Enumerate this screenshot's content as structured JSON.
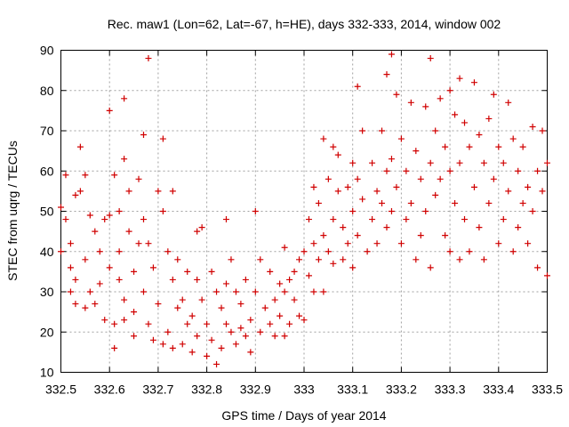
{
  "chart_data": {
    "type": "scatter",
    "title": "Rec. maw1 (Lon=62, Lat=-67, h=HE), days 332-333, 2014, window 002",
    "xlabel": "GPS time / Days of year 2014",
    "ylabel": "STEC from uqrg / TECUs",
    "xlim": [
      332.5,
      333.5
    ],
    "ylim": [
      10,
      90
    ],
    "x_ticks": [
      "332.5",
      "332.6",
      "332.7",
      "332.8",
      "332.9",
      "333",
      "333.1",
      "333.2",
      "333.3",
      "333.4",
      "333.5"
    ],
    "y_ticks": [
      "10",
      "20",
      "30",
      "40",
      "50",
      "60",
      "70",
      "80",
      "90"
    ],
    "grid": true,
    "marker": "+",
    "marker_color": "#d00000",
    "series": [
      {
        "points": [
          [
            332.5,
            51
          ],
          [
            332.5,
            40
          ],
          [
            332.51,
            59
          ],
          [
            332.51,
            48
          ],
          [
            332.52,
            42
          ],
          [
            332.52,
            36
          ],
          [
            332.52,
            30
          ],
          [
            332.53,
            54
          ],
          [
            332.53,
            33
          ],
          [
            332.53,
            27
          ],
          [
            332.54,
            66
          ],
          [
            332.54,
            55
          ],
          [
            332.55,
            59
          ],
          [
            332.55,
            38
          ],
          [
            332.55,
            26
          ],
          [
            332.56,
            49
          ],
          [
            332.56,
            30
          ],
          [
            332.57,
            45
          ],
          [
            332.57,
            27
          ],
          [
            332.58,
            40
          ],
          [
            332.58,
            32
          ],
          [
            332.59,
            48
          ],
          [
            332.59,
            23
          ],
          [
            332.6,
            75
          ],
          [
            332.6,
            49
          ],
          [
            332.6,
            36
          ],
          [
            332.61,
            22
          ],
          [
            332.61,
            16
          ],
          [
            332.61,
            59
          ],
          [
            332.62,
            50
          ],
          [
            332.62,
            40
          ],
          [
            332.62,
            33
          ],
          [
            332.63,
            63
          ],
          [
            332.63,
            78
          ],
          [
            332.63,
            28
          ],
          [
            332.63,
            23
          ],
          [
            332.64,
            55
          ],
          [
            332.64,
            45
          ],
          [
            332.65,
            35
          ],
          [
            332.65,
            25
          ],
          [
            332.65,
            19
          ],
          [
            332.66,
            58
          ],
          [
            332.66,
            42
          ],
          [
            332.67,
            69
          ],
          [
            332.67,
            48
          ],
          [
            332.67,
            30
          ],
          [
            332.68,
            88
          ],
          [
            332.68,
            42
          ],
          [
            332.68,
            22
          ],
          [
            332.69,
            36
          ],
          [
            332.69,
            18
          ],
          [
            332.7,
            55
          ],
          [
            332.7,
            27
          ],
          [
            332.71,
            68
          ],
          [
            332.71,
            50
          ],
          [
            332.71,
            17
          ],
          [
            332.72,
            40
          ],
          [
            332.72,
            20
          ],
          [
            332.73,
            55
          ],
          [
            332.73,
            33
          ],
          [
            332.73,
            16
          ],
          [
            332.74,
            38
          ],
          [
            332.74,
            26
          ],
          [
            332.75,
            28
          ],
          [
            332.75,
            17
          ],
          [
            332.76,
            35
          ],
          [
            332.76,
            22
          ],
          [
            332.77,
            24
          ],
          [
            332.77,
            15
          ],
          [
            332.78,
            45
          ],
          [
            332.78,
            33
          ],
          [
            332.78,
            19
          ],
          [
            332.79,
            46
          ],
          [
            332.79,
            28
          ],
          [
            332.8,
            22
          ],
          [
            332.8,
            14
          ],
          [
            332.81,
            35
          ],
          [
            332.81,
            18
          ],
          [
            332.82,
            30
          ],
          [
            332.82,
            12
          ],
          [
            332.83,
            26
          ],
          [
            332.83,
            16
          ],
          [
            332.84,
            48
          ],
          [
            332.84,
            32
          ],
          [
            332.84,
            22
          ],
          [
            332.85,
            38
          ],
          [
            332.85,
            20
          ],
          [
            332.86,
            30
          ],
          [
            332.86,
            17
          ],
          [
            332.87,
            27
          ],
          [
            332.87,
            21
          ],
          [
            332.88,
            33
          ],
          [
            332.88,
            19
          ],
          [
            332.89,
            23
          ],
          [
            332.89,
            15
          ],
          [
            332.9,
            50
          ],
          [
            332.9,
            30
          ],
          [
            332.91,
            38
          ],
          [
            332.91,
            20
          ],
          [
            332.92,
            26
          ],
          [
            332.93,
            35
          ],
          [
            332.93,
            22
          ],
          [
            332.94,
            28
          ],
          [
            332.94,
            19
          ],
          [
            332.95,
            32
          ],
          [
            332.95,
            24
          ],
          [
            332.96,
            41
          ],
          [
            332.96,
            30
          ],
          [
            332.96,
            19
          ],
          [
            332.97,
            33
          ],
          [
            332.97,
            22
          ],
          [
            332.98,
            35
          ],
          [
            332.98,
            28
          ],
          [
            332.99,
            38
          ],
          [
            332.99,
            24
          ],
          [
            333.0,
            40
          ],
          [
            333.0,
            23
          ],
          [
            333.01,
            48
          ],
          [
            333.01,
            34
          ],
          [
            333.02,
            56
          ],
          [
            333.02,
            42
          ],
          [
            333.02,
            30
          ],
          [
            333.03,
            52
          ],
          [
            333.03,
            38
          ],
          [
            333.04,
            68
          ],
          [
            333.04,
            44
          ],
          [
            333.04,
            30
          ],
          [
            333.05,
            58
          ],
          [
            333.05,
            40
          ],
          [
            333.06,
            66
          ],
          [
            333.06,
            48
          ],
          [
            333.06,
            37
          ],
          [
            333.07,
            64
          ],
          [
            333.07,
            55
          ],
          [
            333.08,
            46
          ],
          [
            333.08,
            38
          ],
          [
            333.09,
            56
          ],
          [
            333.09,
            42
          ],
          [
            333.1,
            62
          ],
          [
            333.1,
            50
          ],
          [
            333.1,
            36
          ],
          [
            333.11,
            81
          ],
          [
            333.11,
            58
          ],
          [
            333.11,
            44
          ],
          [
            333.12,
            70
          ],
          [
            333.12,
            53
          ],
          [
            333.13,
            40
          ],
          [
            333.14,
            62
          ],
          [
            333.14,
            48
          ],
          [
            333.15,
            55
          ],
          [
            333.15,
            42
          ],
          [
            333.16,
            70
          ],
          [
            333.16,
            52
          ],
          [
            333.17,
            84
          ],
          [
            333.17,
            60
          ],
          [
            333.17,
            46
          ],
          [
            333.18,
            89
          ],
          [
            333.18,
            63
          ],
          [
            333.18,
            50
          ],
          [
            333.19,
            79
          ],
          [
            333.19,
            56
          ],
          [
            333.2,
            68
          ],
          [
            333.2,
            42
          ],
          [
            333.21,
            60
          ],
          [
            333.21,
            48
          ],
          [
            333.22,
            77
          ],
          [
            333.22,
            52
          ],
          [
            333.23,
            65
          ],
          [
            333.23,
            38
          ],
          [
            333.24,
            58
          ],
          [
            333.24,
            44
          ],
          [
            333.25,
            76
          ],
          [
            333.25,
            50
          ],
          [
            333.26,
            88
          ],
          [
            333.26,
            62
          ],
          [
            333.26,
            36
          ],
          [
            333.27,
            70
          ],
          [
            333.27,
            54
          ],
          [
            333.28,
            78
          ],
          [
            333.28,
            58
          ],
          [
            333.29,
            66
          ],
          [
            333.29,
            44
          ],
          [
            333.3,
            80
          ],
          [
            333.3,
            60
          ],
          [
            333.3,
            40
          ],
          [
            333.31,
            74
          ],
          [
            333.31,
            52
          ],
          [
            333.32,
            83
          ],
          [
            333.32,
            62
          ],
          [
            333.32,
            38
          ],
          [
            333.33,
            72
          ],
          [
            333.33,
            48
          ],
          [
            333.34,
            66
          ],
          [
            333.34,
            40
          ],
          [
            333.35,
            82
          ],
          [
            333.35,
            56
          ],
          [
            333.36,
            69
          ],
          [
            333.36,
            46
          ],
          [
            333.37,
            62
          ],
          [
            333.37,
            38
          ],
          [
            333.38,
            73
          ],
          [
            333.38,
            52
          ],
          [
            333.39,
            79
          ],
          [
            333.39,
            58
          ],
          [
            333.4,
            66
          ],
          [
            333.4,
            42
          ],
          [
            333.41,
            62
          ],
          [
            333.41,
            48
          ],
          [
            333.42,
            77
          ],
          [
            333.42,
            55
          ],
          [
            333.43,
            68
          ],
          [
            333.43,
            40
          ],
          [
            333.44,
            60
          ],
          [
            333.44,
            46
          ],
          [
            333.45,
            66
          ],
          [
            333.45,
            52
          ],
          [
            333.46,
            56
          ],
          [
            333.46,
            42
          ],
          [
            333.47,
            71
          ],
          [
            333.47,
            50
          ],
          [
            333.48,
            60
          ],
          [
            333.48,
            36
          ],
          [
            333.49,
            70
          ],
          [
            333.49,
            55
          ],
          [
            333.5,
            62
          ],
          [
            333.5,
            34
          ]
        ]
      }
    ]
  }
}
